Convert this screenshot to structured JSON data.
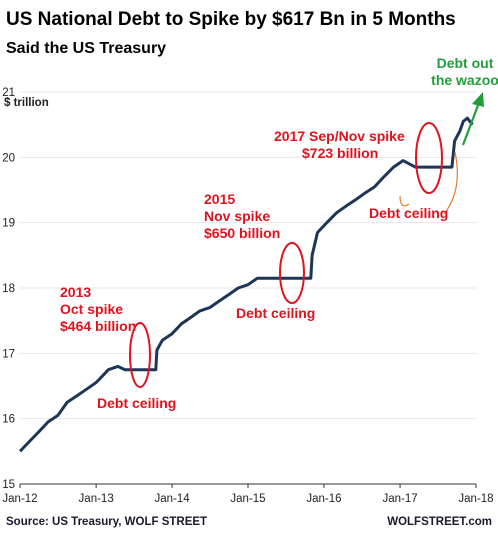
{
  "chart_data": {
    "type": "line",
    "title": "US National Debt to Spike by $617 Bn in 5 Months",
    "subtitle": "Said the US Treasury",
    "ylabel": "$ trillion",
    "xlabel": "",
    "ylim": [
      15,
      21
    ],
    "xlim": [
      "2012-01-01",
      "2018-01-01"
    ],
    "yticks": [
      15,
      16,
      17,
      18,
      19,
      20,
      21
    ],
    "xticks": [
      {
        "label": "Jan-12",
        "date": "2012-01-01"
      },
      {
        "label": "Jan-13",
        "date": "2013-01-01"
      },
      {
        "label": "Jan-14",
        "date": "2014-01-01"
      },
      {
        "label": "Jan-15",
        "date": "2015-01-01"
      },
      {
        "label": "Jan-16",
        "date": "2016-01-01"
      },
      {
        "label": "Jan-17",
        "date": "2017-01-01"
      },
      {
        "label": "Jan-18",
        "date": "2018-01-01"
      }
    ],
    "grid": "horizontal",
    "line_color": "#1d3557",
    "accent_color": "#e0121d",
    "series": [
      {
        "x": [
          "2012-01-01",
          "2012-02-15",
          "2012-04-01",
          "2012-05-15",
          "2012-07-01",
          "2012-08-15",
          "2012-10-01",
          "2012-11-15",
          "2012-12-31",
          "2013-01-15",
          "2013-03-01",
          "2013-04-15",
          "2013-05-20",
          "2013-07-01",
          "2013-08-15",
          "2013-10-15",
          "2013-10-20",
          "2013-11-15",
          "2014-01-01",
          "2014-02-15",
          "2014-04-01",
          "2014-05-15",
          "2014-07-01",
          "2014-08-15",
          "2014-10-01",
          "2014-11-15",
          "2015-01-01",
          "2015-02-15",
          "2015-03-15",
          "2015-05-01",
          "2015-07-01",
          "2015-09-01",
          "2015-10-30",
          "2015-11-05",
          "2015-12-01",
          "2016-01-15",
          "2016-03-01",
          "2016-04-15",
          "2016-06-01",
          "2016-07-15",
          "2016-09-01",
          "2016-10-15",
          "2016-12-01",
          "2017-01-15",
          "2017-03-15",
          "2017-05-01",
          "2017-07-01",
          "2017-09-07",
          "2017-09-20",
          "2017-10-15",
          "2017-11-01",
          "2017-11-20",
          "2017-12-15"
        ],
        "y": [
          15.5,
          15.65,
          15.8,
          15.95,
          16.05,
          16.25,
          16.35,
          16.45,
          16.55,
          16.6,
          16.75,
          16.8,
          16.75,
          16.75,
          16.75,
          16.75,
          17.05,
          17.2,
          17.3,
          17.45,
          17.55,
          17.65,
          17.7,
          17.8,
          17.9,
          18.0,
          18.05,
          18.15,
          18.15,
          18.15,
          18.15,
          18.15,
          18.15,
          18.5,
          18.85,
          19.0,
          19.15,
          19.25,
          19.35,
          19.45,
          19.55,
          19.7,
          19.85,
          19.95,
          19.85,
          19.85,
          19.85,
          19.85,
          20.25,
          20.4,
          20.55,
          20.6,
          20.5
        ]
      }
    ],
    "annotations": [
      {
        "lines": [
          "2013",
          "Oct spike",
          "$464 billion"
        ]
      },
      {
        "lines": [
          "Debt ceiling"
        ]
      },
      {
        "lines": [
          "2015",
          "Nov spike",
          "$650 billion"
        ]
      },
      {
        "lines": [
          "Debt ceiling"
        ]
      },
      {
        "lines": [
          "2017 Sep/Nov spike",
          "$723 billion"
        ]
      },
      {
        "lines": [
          "Debt ceiling"
        ]
      },
      {
        "lines": [
          "Debt out",
          "the wazoo"
        ]
      }
    ]
  },
  "footer": {
    "source": "Source: US Treasury, WOLF STREET",
    "brand": "WOLFSTREET.com"
  }
}
